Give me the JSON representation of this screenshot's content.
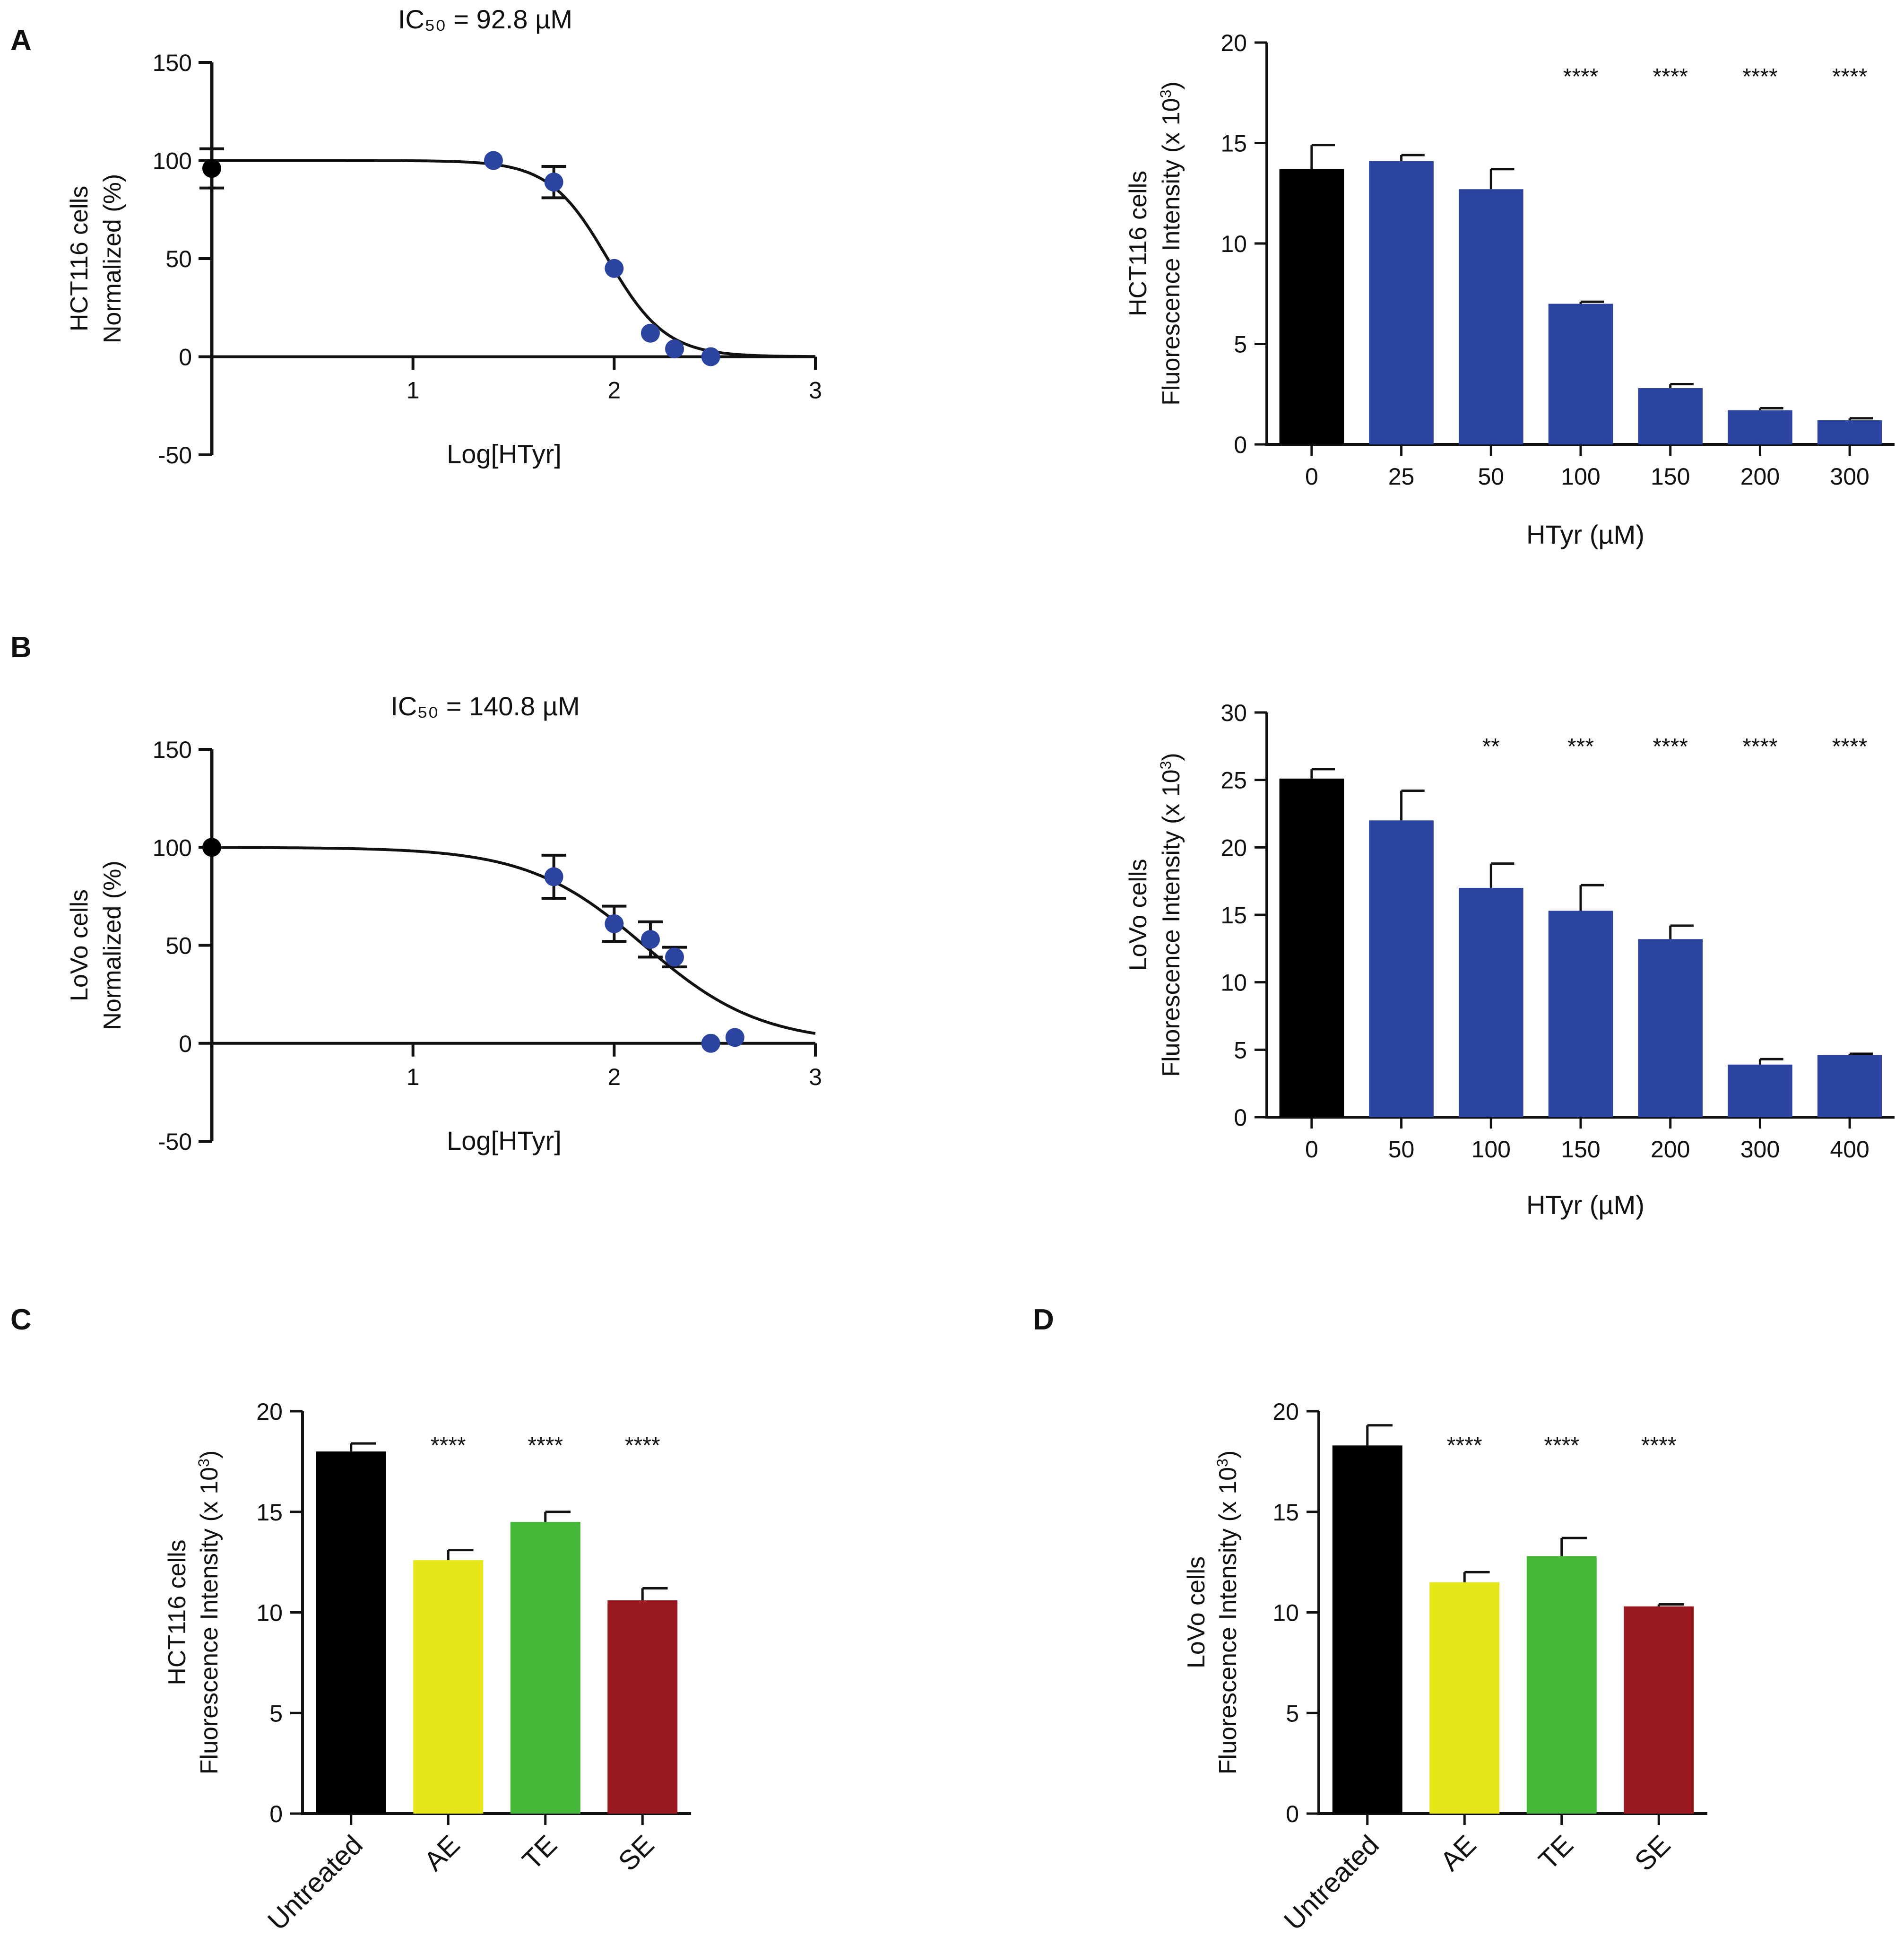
{
  "panel_labels": [
    "A",
    "B",
    "C",
    "D"
  ],
  "colors": {
    "axis": "#111111",
    "black": "#000000",
    "blue": "#2a44a0",
    "yellow": "#e6e619",
    "green": "#44b638",
    "red": "#9b1a21"
  },
  "chart_data": [
    {
      "id": "A-left",
      "type": "scatter",
      "title": "IC₅₀ = 92.8 µM",
      "xlabel": "Log[HTyr]",
      "ylabel": [
        "HCT116 cells",
        "Normalized (%)"
      ],
      "xlim": [
        0,
        3
      ],
      "ylim": [
        -50,
        150
      ],
      "xticks": [
        "1",
        "2",
        "3"
      ],
      "yticks": [
        "150",
        "100",
        "50",
        "0",
        "-50"
      ],
      "fit": {
        "top": 100,
        "bottom": 0,
        "logIC50": 1.9675,
        "hill": -3.0
      },
      "points": [
        {
          "x": 0,
          "y": 96,
          "err": 10,
          "color": "#000000"
        },
        {
          "x": 1.4,
          "y": 100,
          "err": 0,
          "color": "#2a44a0"
        },
        {
          "x": 1.7,
          "y": 89,
          "err": 8,
          "color": "#2a44a0"
        },
        {
          "x": 2.0,
          "y": 45,
          "err": 0,
          "color": "#2a44a0"
        },
        {
          "x": 2.18,
          "y": 12,
          "err": 0,
          "color": "#2a44a0"
        },
        {
          "x": 2.3,
          "y": 4,
          "err": 0,
          "color": "#2a44a0"
        },
        {
          "x": 2.48,
          "y": 0,
          "err": 0,
          "color": "#2a44a0"
        }
      ]
    },
    {
      "id": "A-right",
      "type": "bar",
      "xlabel": "HTyr (µM)",
      "ylabel": [
        "HCT116 cells",
        "Fluorescence Intensity (x 10",
        "3",
        ")"
      ],
      "ylim": [
        0,
        20
      ],
      "yticks": [
        "20",
        "15",
        "10",
        "5",
        "0"
      ],
      "categories": [
        "0",
        "25",
        "50",
        "100",
        "150",
        "200",
        "300"
      ],
      "values": [
        13.7,
        14.1,
        12.7,
        7.0,
        2.8,
        1.7,
        1.2
      ],
      "errors": [
        1.2,
        0.3,
        1.0,
        0.1,
        0.2,
        0.1,
        0.1
      ],
      "significance": [
        "",
        "",
        "",
        "****",
        "****",
        "****",
        "****"
      ],
      "colors": [
        "#000000",
        "#2a44a0",
        "#2a44a0",
        "#2a44a0",
        "#2a44a0",
        "#2a44a0",
        "#2a44a0"
      ]
    },
    {
      "id": "B-left",
      "type": "scatter",
      "title": "IC₅₀ = 140.8 µM",
      "xlabel": "Log[HTyr]",
      "ylabel": [
        "LoVo cells",
        "Normalized (%)"
      ],
      "xlim": [
        0,
        3
      ],
      "ylim": [
        -50,
        150
      ],
      "xticks": [
        "1",
        "2",
        "3"
      ],
      "yticks": [
        "150",
        "100",
        "50",
        "0",
        "-50"
      ],
      "fit": {
        "top": 100,
        "bottom": 0,
        "logIC50": 2.1486,
        "hill": -1.5
      },
      "points": [
        {
          "x": 0,
          "y": 100,
          "err": 0,
          "color": "#000000"
        },
        {
          "x": 1.7,
          "y": 85,
          "err": 11,
          "color": "#2a44a0"
        },
        {
          "x": 2.0,
          "y": 61,
          "err": 9,
          "color": "#2a44a0"
        },
        {
          "x": 2.18,
          "y": 53,
          "err": 9,
          "color": "#2a44a0"
        },
        {
          "x": 2.3,
          "y": 44,
          "err": 5,
          "color": "#2a44a0"
        },
        {
          "x": 2.48,
          "y": 0,
          "err": 0,
          "color": "#2a44a0"
        },
        {
          "x": 2.6,
          "y": 3,
          "err": 0,
          "color": "#2a44a0"
        }
      ]
    },
    {
      "id": "B-right",
      "type": "bar",
      "xlabel": "HTyr (µM)",
      "ylabel": [
        "LoVo cells",
        "Fluorescence Intensity (x 10",
        "3",
        ")"
      ],
      "ylim": [
        0,
        30
      ],
      "yticks": [
        "30",
        "25",
        "20",
        "15",
        "10",
        "5",
        "0"
      ],
      "categories": [
        "0",
        "50",
        "100",
        "150",
        "200",
        "300",
        "400"
      ],
      "values": [
        25.1,
        22.0,
        17.0,
        15.3,
        13.2,
        3.9,
        4.6
      ],
      "errors": [
        0.7,
        2.2,
        1.8,
        1.9,
        1.0,
        0.4,
        0.1
      ],
      "significance": [
        "",
        "",
        "**",
        "***",
        "****",
        "****",
        "****"
      ],
      "colors": [
        "#000000",
        "#2a44a0",
        "#2a44a0",
        "#2a44a0",
        "#2a44a0",
        "#2a44a0",
        "#2a44a0"
      ]
    },
    {
      "id": "C",
      "type": "bar",
      "xlabel": "",
      "ylabel": [
        "HCT116 cells",
        "Fluorescence Intensity (x 10",
        "3",
        ")"
      ],
      "ylim": [
        0,
        20
      ],
      "yticks": [
        "20",
        "15",
        "10",
        "5",
        "0"
      ],
      "categories": [
        "Untreated",
        "AE",
        "TE",
        "SE"
      ],
      "values": [
        18.0,
        12.6,
        14.5,
        10.6
      ],
      "errors": [
        0.4,
        0.5,
        0.5,
        0.6
      ],
      "significance": [
        "",
        "****",
        "****",
        "****"
      ],
      "colors": [
        "#000000",
        "#e6e619",
        "#44b638",
        "#9b1a21"
      ]
    },
    {
      "id": "D",
      "type": "bar",
      "xlabel": "",
      "ylabel": [
        "LoVo cells",
        "Fluorescence Intensity (x 10",
        "3",
        ")"
      ],
      "ylim": [
        0,
        20
      ],
      "yticks": [
        "20",
        "15",
        "10",
        "5",
        "0"
      ],
      "categories": [
        "Untreated",
        "AE",
        "TE",
        "SE"
      ],
      "values": [
        18.3,
        11.5,
        12.8,
        10.3
      ],
      "errors": [
        1.0,
        0.5,
        0.9,
        0.1
      ],
      "significance": [
        "",
        "****",
        "****",
        "****"
      ],
      "colors": [
        "#000000",
        "#e6e619",
        "#44b638",
        "#9b1a21"
      ]
    }
  ]
}
